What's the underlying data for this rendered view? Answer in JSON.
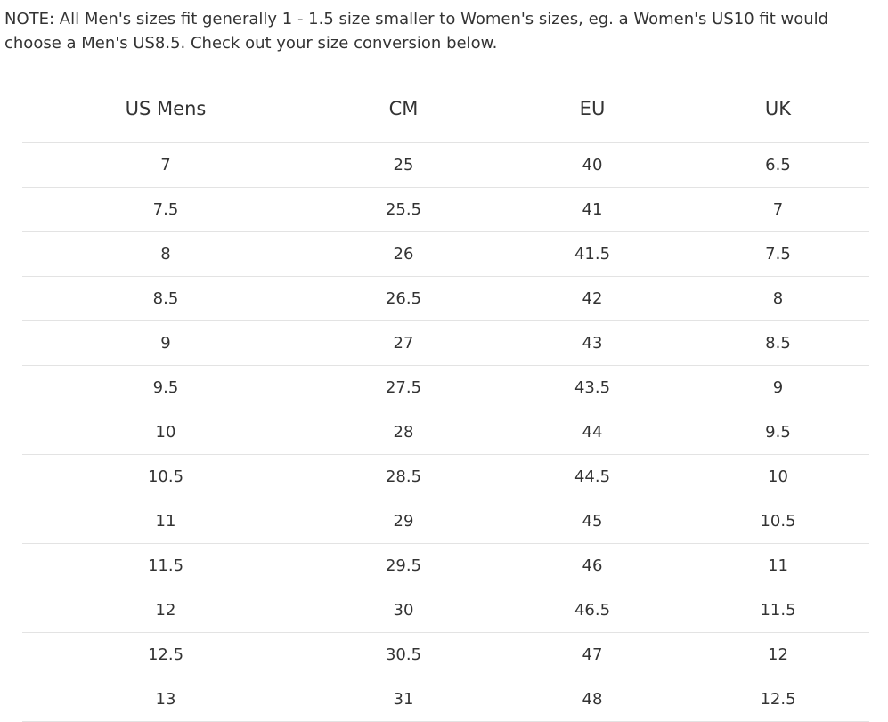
{
  "note": "NOTE: All Men's sizes fit generally 1 - 1.5 size smaller to Women's sizes, eg. a Women's US10 fit would choose a Men's US8.5. Check out your size conversion below.",
  "table": {
    "headers": [
      "US Mens",
      "CM",
      "EU",
      "UK"
    ],
    "rows": [
      [
        "7",
        "25",
        "40",
        "6.5"
      ],
      [
        "7.5",
        "25.5",
        "41",
        "7"
      ],
      [
        "8",
        "26",
        "41.5",
        "7.5"
      ],
      [
        "8.5",
        "26.5",
        "42",
        "8"
      ],
      [
        "9",
        "27",
        "43",
        "8.5"
      ],
      [
        "9.5",
        "27.5",
        "43.5",
        "9"
      ],
      [
        "10",
        "28",
        "44",
        "9.5"
      ],
      [
        "10.5",
        "28.5",
        "44.5",
        "10"
      ],
      [
        "11",
        "29",
        "45",
        "10.5"
      ],
      [
        "11.5",
        "29.5",
        "46",
        "11"
      ],
      [
        "12",
        "30",
        "46.5",
        "11.5"
      ],
      [
        "12.5",
        "30.5",
        "47",
        "12"
      ],
      [
        "13",
        "31",
        "48",
        "12.5"
      ]
    ]
  }
}
